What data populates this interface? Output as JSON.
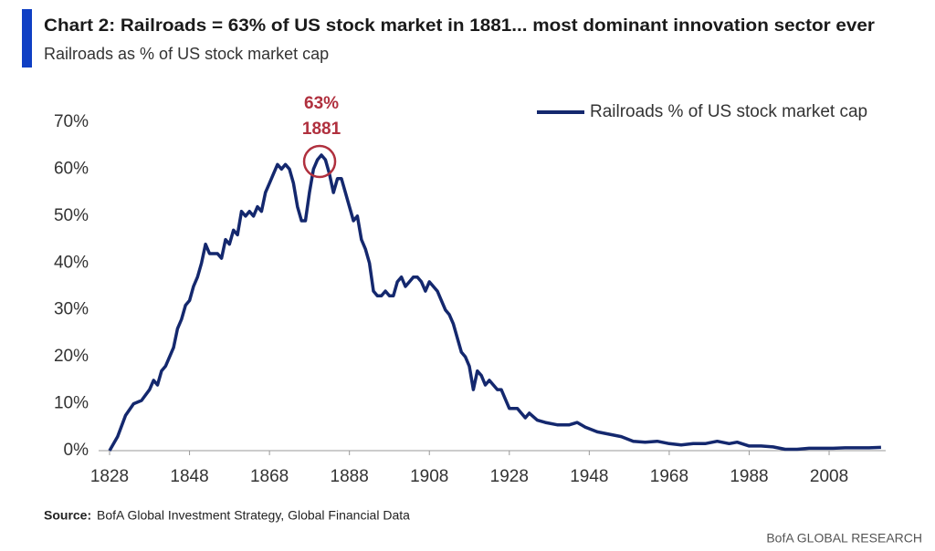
{
  "chart_data": {
    "type": "line",
    "title": "Chart 2: Railroads = 63% of US stock market in 1881... most dominant innovation sector ever",
    "subtitle": "Railroads as % of US stock market cap",
    "source_label": "Source:",
    "source": "BofA Global Investment Strategy, Global Financial Data",
    "footer": "BofA GLOBAL RESEARCH",
    "legend": "top-right",
    "x": [
      1828,
      1830,
      1832,
      1834,
      1836,
      1838,
      1839,
      1840,
      1841,
      1842,
      1844,
      1845,
      1846,
      1847,
      1848,
      1849,
      1850,
      1851,
      1852,
      1853,
      1854,
      1855,
      1856,
      1857,
      1858,
      1859,
      1860,
      1861,
      1862,
      1863,
      1864,
      1865,
      1866,
      1867,
      1868,
      1869,
      1870,
      1871,
      1872,
      1873,
      1874,
      1875,
      1876,
      1877,
      1878,
      1879,
      1880,
      1881,
      1882,
      1883,
      1884,
      1885,
      1886,
      1887,
      1888,
      1889,
      1890,
      1891,
      1892,
      1893,
      1894,
      1895,
      1896,
      1897,
      1898,
      1899,
      1900,
      1901,
      1902,
      1903,
      1904,
      1905,
      1906,
      1907,
      1908,
      1909,
      1910,
      1911,
      1912,
      1913,
      1914,
      1915,
      1916,
      1917,
      1918,
      1919,
      1920,
      1921,
      1922,
      1923,
      1924,
      1925,
      1926,
      1927,
      1928,
      1930,
      1932,
      1933,
      1935,
      1937,
      1940,
      1943,
      1945,
      1947,
      1950,
      1953,
      1956,
      1959,
      1962,
      1965,
      1968,
      1971,
      1974,
      1977,
      1980,
      1983,
      1985,
      1988,
      1991,
      1994,
      1997,
      2000,
      2003,
      2006,
      2009,
      2012,
      2015,
      2018,
      2021
    ],
    "series": [
      {
        "name": "Railroads % of US stock market cap",
        "color": "#14286e",
        "values": [
          0,
          3,
          7.5,
          10,
          10.7,
          13,
          15,
          14,
          17,
          18,
          22,
          26,
          28,
          31,
          32,
          35,
          37,
          40,
          44,
          42,
          42,
          42,
          41,
          45,
          44,
          47,
          46,
          51,
          50,
          51,
          50,
          52,
          51,
          55,
          57,
          59,
          61,
          60,
          61,
          60,
          57,
          52,
          49,
          49,
          55,
          60,
          62,
          63,
          62,
          59,
          55,
          58,
          58,
          55,
          52,
          49,
          50,
          45,
          43,
          40,
          34,
          33,
          33,
          34,
          33,
          33,
          36,
          37,
          35,
          36,
          37,
          37,
          36,
          34,
          36,
          35,
          34,
          32,
          30,
          29,
          27,
          24,
          21,
          20,
          18,
          13,
          17,
          16,
          14,
          15,
          14,
          13,
          13,
          11,
          9,
          9,
          7,
          8,
          6.5,
          6,
          5.5,
          5.5,
          6,
          5,
          4,
          3.5,
          3,
          2,
          1.8,
          2,
          1.5,
          1.2,
          1.5,
          1.5,
          2,
          1.5,
          1.8,
          1,
          1,
          0.8,
          0.3,
          0.3,
          0.5,
          0.5,
          0.5,
          0.6,
          0.6,
          0.6,
          0.7
        ]
      }
    ],
    "annotations": [
      {
        "x": 1881,
        "y": 63,
        "lines": [
          "63%",
          "1881"
        ],
        "color": "#b0303e"
      }
    ],
    "xlim": [
      1824,
      2023
    ],
    "xticks": [
      1828,
      1848,
      1868,
      1888,
      1908,
      1928,
      1948,
      1968,
      1988,
      2008
    ],
    "ylim": [
      0,
      70
    ],
    "yticks": [
      {
        "value": 0,
        "label": "0%"
      },
      {
        "value": 10,
        "label": "10%"
      },
      {
        "value": 20,
        "label": "20%"
      },
      {
        "value": 30,
        "label": "30%"
      },
      {
        "value": 40,
        "label": "40%"
      },
      {
        "value": 50,
        "label": "50%"
      },
      {
        "value": 60,
        "label": "60%"
      },
      {
        "value": 70,
        "label": "70%"
      }
    ]
  }
}
